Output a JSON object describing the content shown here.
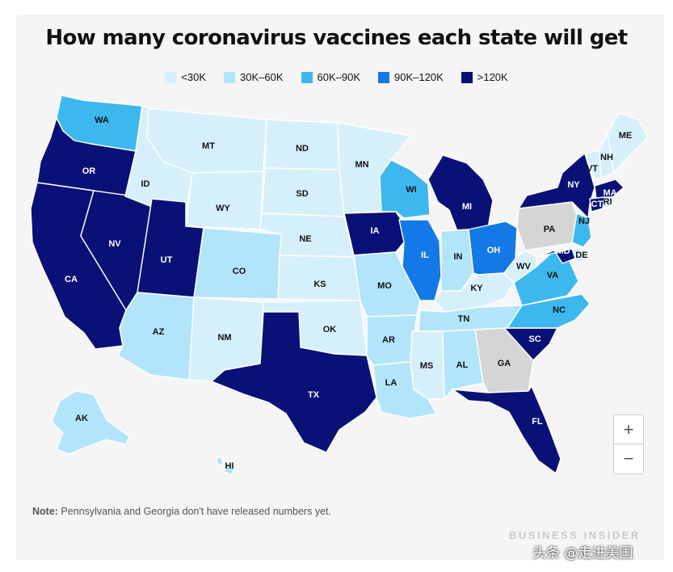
{
  "title": "How many coronavirus vaccines each state will get",
  "legend": [
    {
      "label": "<30K",
      "color": "#d6f0fb"
    },
    {
      "label": "30K–60K",
      "color": "#b2e4fa"
    },
    {
      "label": "60K–90K",
      "color": "#3db8ef"
    },
    {
      "label": "90K–120K",
      "color": "#1479e6"
    },
    {
      "label": ">120K",
      "color": "#0a1176"
    }
  ],
  "no_data_color": "#d5d5d5",
  "states": [
    {
      "code": "WA",
      "category": "60K–90K"
    },
    {
      "code": "OR",
      "category": ">120K"
    },
    {
      "code": "CA",
      "category": ">120K"
    },
    {
      "code": "NV",
      "category": ">120K"
    },
    {
      "code": "ID",
      "category": "<30K"
    },
    {
      "code": "MT",
      "category": "<30K"
    },
    {
      "code": "WY",
      "category": "<30K"
    },
    {
      "code": "UT",
      "category": ">120K"
    },
    {
      "code": "AZ",
      "category": "30K–60K"
    },
    {
      "code": "CO",
      "category": "30K–60K"
    },
    {
      "code": "NM",
      "category": "<30K"
    },
    {
      "code": "ND",
      "category": "<30K"
    },
    {
      "code": "SD",
      "category": "<30K"
    },
    {
      "code": "NE",
      "category": "<30K"
    },
    {
      "code": "KS",
      "category": "<30K"
    },
    {
      "code": "OK",
      "category": "<30K"
    },
    {
      "code": "TX",
      "category": ">120K"
    },
    {
      "code": "MN",
      "category": "<30K"
    },
    {
      "code": "IA",
      "category": ">120K"
    },
    {
      "code": "MO",
      "category": "30K–60K"
    },
    {
      "code": "AR",
      "category": "30K–60K"
    },
    {
      "code": "LA",
      "category": "30K–60K"
    },
    {
      "code": "WI",
      "category": "60K–90K"
    },
    {
      "code": "IL",
      "category": "90K–120K"
    },
    {
      "code": "MI",
      "category": ">120K"
    },
    {
      "code": "IN",
      "category": "30K–60K"
    },
    {
      "code": "OH",
      "category": "90K–120K"
    },
    {
      "code": "KY",
      "category": "<30K"
    },
    {
      "code": "TN",
      "category": "30K–60K"
    },
    {
      "code": "MS",
      "category": "<30K"
    },
    {
      "code": "AL",
      "category": "30K–60K"
    },
    {
      "code": "GA",
      "category": "no data"
    },
    {
      "code": "FL",
      "category": ">120K"
    },
    {
      "code": "SC",
      "category": ">120K"
    },
    {
      "code": "NC",
      "category": "60K–90K"
    },
    {
      "code": "VA",
      "category": "60K–90K"
    },
    {
      "code": "WV",
      "category": "<30K"
    },
    {
      "code": "PA",
      "category": "no data"
    },
    {
      "code": "NY",
      "category": ">120K"
    },
    {
      "code": "VT",
      "category": "<30K"
    },
    {
      "code": "NH",
      "category": "<30K"
    },
    {
      "code": "ME",
      "category": "<30K"
    },
    {
      "code": "MA",
      "category": ">120K"
    },
    {
      "code": "CT",
      "category": ">120K"
    },
    {
      "code": "RI",
      "category": "<30K"
    },
    {
      "code": "NJ",
      "category": "60K–90K"
    },
    {
      "code": "DE",
      "category": "<30K"
    },
    {
      "code": "MD",
      "category": ">120K"
    },
    {
      "code": "AK",
      "category": "30K–60K"
    },
    {
      "code": "HI",
      "category": "30K–60K"
    }
  ],
  "zoom": {
    "in": "+",
    "out": "−"
  },
  "note": {
    "label": "Note:",
    "text": " Pennsylvania and Georgia don't have released numbers yet."
  },
  "brand": "BUSINESS INSIDER",
  "watermark": "头条 @走进美国"
}
